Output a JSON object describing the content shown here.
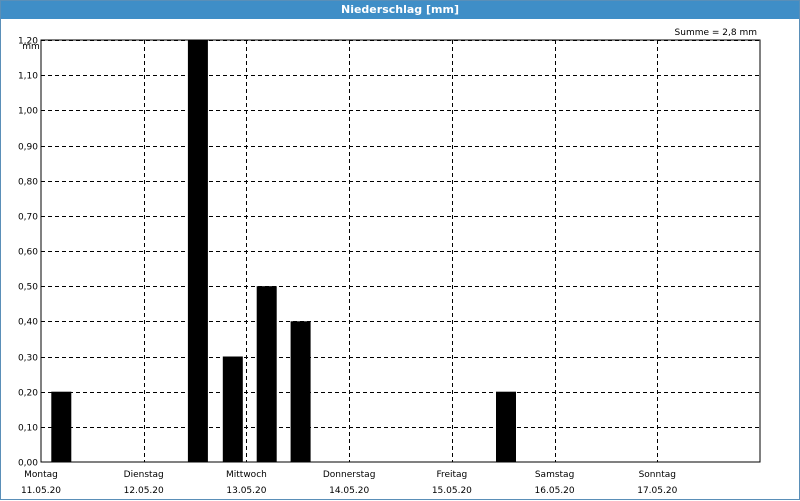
{
  "window": {
    "title": "Niederschlag [mm]"
  },
  "chart_data": {
    "type": "bar",
    "title": "Niederschlag [mm]",
    "annotation": "Summe = 2,8 mm",
    "ylabel": "mm",
    "xlabel": "",
    "ylim": [
      0,
      1.2
    ],
    "y_ticks": [
      "0,00",
      "0,10",
      "0,20",
      "0,30",
      "0,40",
      "0,50",
      "0,60",
      "0,70",
      "0,80",
      "0,90",
      "1,00",
      "1,10",
      "1,20"
    ],
    "days": [
      {
        "name": "Montag",
        "date": "11.05.20"
      },
      {
        "name": "Dienstag",
        "date": "12.05.20"
      },
      {
        "name": "Mittwoch",
        "date": "13.05.20"
      },
      {
        "name": "Donnerstag",
        "date": "14.05.20"
      },
      {
        "name": "Freitag",
        "date": "15.05.20"
      },
      {
        "name": "Samstag",
        "date": "16.05.20"
      },
      {
        "name": "Sonntag",
        "date": "17.05.20"
      }
    ],
    "x_range_days": [
      0,
      7
    ],
    "bars": [
      {
        "day_offset": 0.1,
        "value": 0.2
      },
      {
        "day_offset": 1.43,
        "value": 1.2
      },
      {
        "day_offset": 1.77,
        "value": 0.3
      },
      {
        "day_offset": 2.1,
        "value": 0.5
      },
      {
        "day_offset": 2.43,
        "value": 0.4
      },
      {
        "day_offset": 4.43,
        "value": 0.2
      }
    ],
    "bar_color": "#000000",
    "grid": true
  }
}
